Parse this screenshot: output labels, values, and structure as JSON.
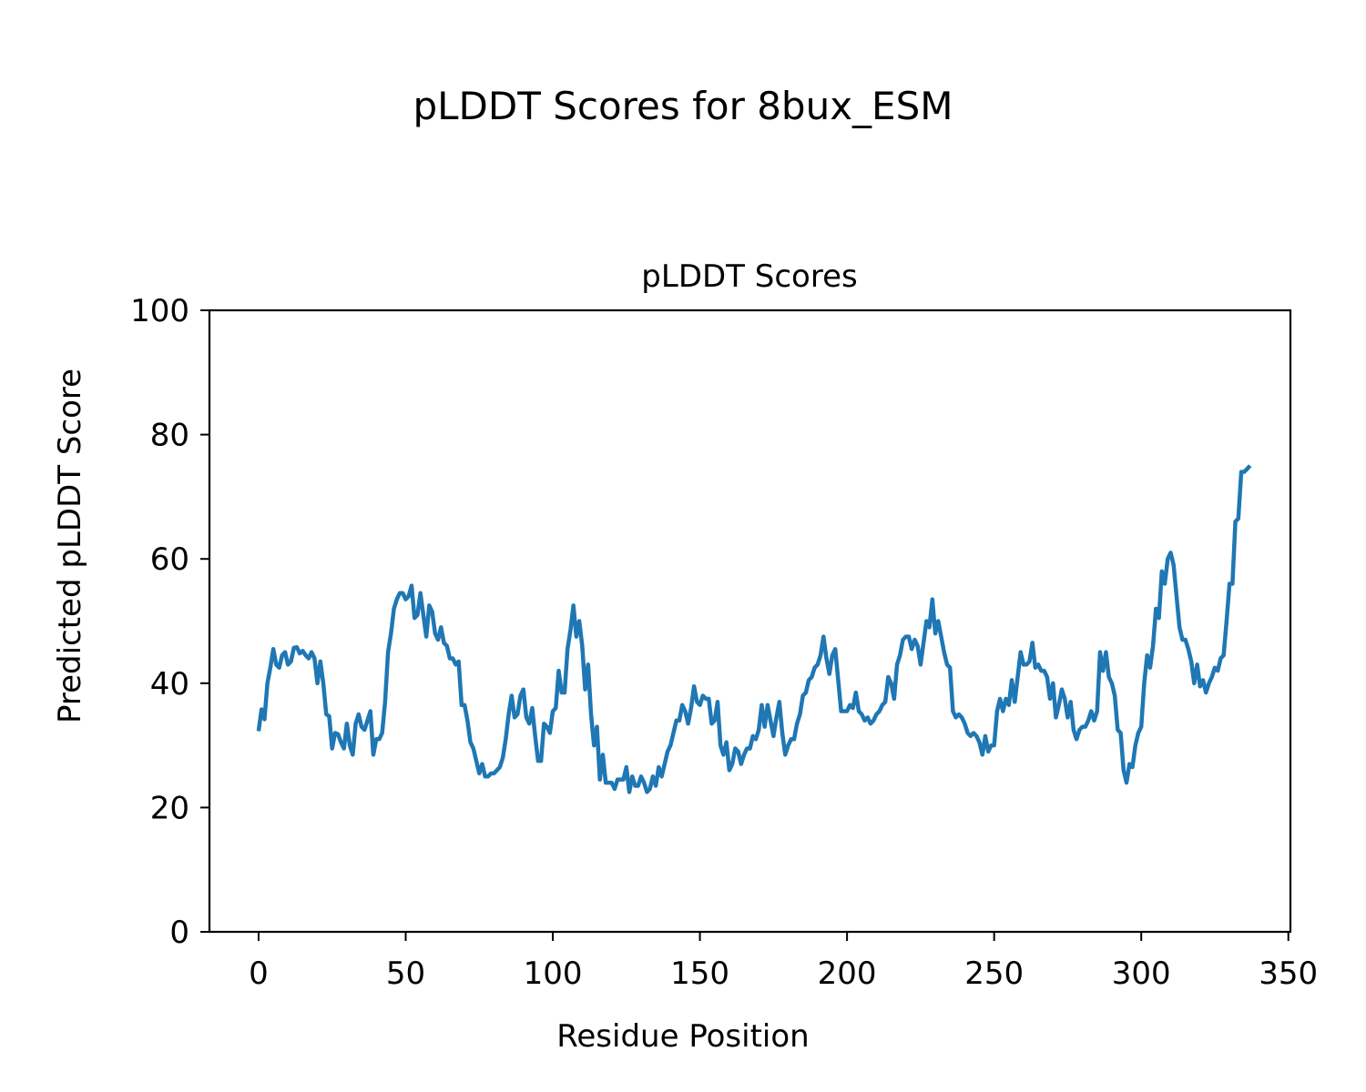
{
  "figure": {
    "suptitle": "pLDDT Scores for 8bux_ESM"
  },
  "chart_data": {
    "type": "line",
    "title": "pLDDT Scores",
    "xlabel": "Residue Position",
    "ylabel": "Predicted pLDDT Score",
    "xlim": [
      -16.7,
      350.7
    ],
    "ylim": [
      0,
      100
    ],
    "xticks": [
      0,
      50,
      100,
      150,
      200,
      250,
      300,
      350
    ],
    "yticks": [
      0,
      20,
      40,
      60,
      80,
      100
    ],
    "grid": false,
    "line_color": "#1f77b4",
    "series": [
      {
        "x_start": 0,
        "values": [
          32.3,
          35.8,
          34.2,
          40.0,
          42.5,
          45.5,
          43.0,
          42.5,
          44.5,
          45.0,
          43.0,
          43.5,
          45.7,
          45.8,
          44.8,
          45.2,
          44.5,
          44.0,
          45.0,
          44.0,
          40.0,
          43.5,
          40.0,
          35.0,
          34.7,
          29.5,
          32.0,
          31.8,
          30.5,
          29.5,
          33.5,
          30.0,
          28.5,
          33.5,
          35.0,
          33.0,
          32.5,
          34.0,
          35.5,
          28.5,
          31.0,
          31.0,
          32.0,
          37.0,
          45.0,
          48.0,
          52.0,
          53.5,
          54.5,
          54.5,
          53.5,
          54.0,
          55.7,
          50.5,
          51.0,
          54.5,
          51.0,
          47.5,
          52.5,
          51.5,
          48.0,
          47.0,
          49.0,
          46.5,
          46.0,
          44.0,
          44.0,
          43.0,
          43.5,
          36.5,
          36.5,
          34.0,
          30.5,
          29.5,
          27.5,
          25.5,
          27.0,
          25.0,
          25.0,
          25.5,
          25.5,
          26.0,
          26.5,
          28.0,
          31.0,
          35.0,
          38.0,
          34.5,
          35.0,
          38.0,
          39.0,
          34.5,
          33.5,
          36.0,
          31.5,
          27.5,
          27.5,
          33.5,
          33.0,
          32.0,
          35.5,
          36.0,
          42.0,
          38.5,
          38.5,
          45.5,
          48.5,
          52.5,
          47.5,
          50.0,
          46.0,
          39.0,
          43.0,
          35.0,
          30.0,
          33.0,
          24.5,
          28.5,
          24.0,
          24.0,
          24.0,
          23.0,
          24.5,
          24.5,
          24.5,
          26.5,
          22.5,
          25.0,
          23.5,
          23.5,
          25.0,
          24.0,
          22.5,
          23.0,
          25.0,
          23.5,
          26.5,
          25.0,
          27.0,
          29.0,
          30.0,
          32.0,
          34.0,
          34.0,
          36.5,
          35.5,
          33.5,
          36.0,
          39.5,
          37.0,
          36.5,
          38.0,
          37.5,
          37.5,
          33.5,
          34.0,
          37.0,
          30.0,
          28.5,
          30.5,
          26.0,
          27.0,
          29.5,
          29.0,
          27.0,
          28.5,
          29.5,
          29.5,
          31.5,
          31.0,
          32.5,
          36.5,
          33.0,
          36.5,
          34.0,
          31.5,
          34.5,
          37.0,
          32.0,
          28.5,
          30.0,
          31.0,
          31.0,
          33.5,
          35.0,
          38.0,
          38.5,
          40.5,
          41.0,
          42.5,
          43.0,
          44.5,
          47.5,
          44.0,
          41.5,
          44.5,
          45.5,
          40.5,
          35.5,
          35.5,
          35.5,
          36.5,
          36.0,
          38.5,
          35.5,
          35.0,
          34.0,
          34.5,
          33.5,
          34.0,
          35.0,
          35.5,
          36.5,
          37.0,
          41.0,
          40.0,
          37.5,
          43.0,
          44.5,
          47.0,
          47.5,
          47.5,
          45.5,
          47.0,
          46.0,
          43.0,
          46.5,
          50.0,
          49.0,
          53.5,
          48.0,
          50.0,
          47.5,
          45.0,
          43.0,
          42.5,
          35.5,
          34.5,
          35.0,
          34.5,
          33.5,
          32.0,
          31.5,
          32.0,
          31.5,
          30.5,
          28.5,
          31.5,
          29.0,
          30.0,
          30.0,
          35.5,
          37.5,
          35.5,
          37.5,
          36.5,
          40.5,
          37.0,
          41.0,
          45.0,
          43.0,
          43.0,
          43.5,
          46.5,
          42.5,
          43.0,
          42.0,
          42.0,
          41.0,
          37.5,
          40.0,
          34.5,
          36.5,
          39.0,
          37.5,
          34.5,
          37.0,
          32.5,
          31.0,
          32.5,
          33.0,
          33.0,
          34.0,
          35.5,
          34.0,
          35.5,
          45.0,
          42.0,
          45.0,
          41.0,
          40.0,
          38.0,
          32.5,
          32.0,
          26.0,
          24.0,
          27.0,
          26.5,
          30.0,
          32.0,
          33.0,
          40.0,
          44.5,
          42.5,
          46.0,
          52.0,
          50.5,
          58.0,
          56.0,
          60.0,
          61.0,
          59.0,
          54.0,
          49.0,
          47.0,
          47.0,
          45.5,
          43.5,
          40.0,
          43.0,
          39.5,
          40.5,
          38.5,
          40.0,
          41.0,
          42.5,
          42.0,
          44.0,
          44.5,
          50.0,
          56.0,
          56.0,
          66.0,
          66.5,
          74.0,
          74.0,
          74.5,
          75.0
        ]
      }
    ]
  }
}
